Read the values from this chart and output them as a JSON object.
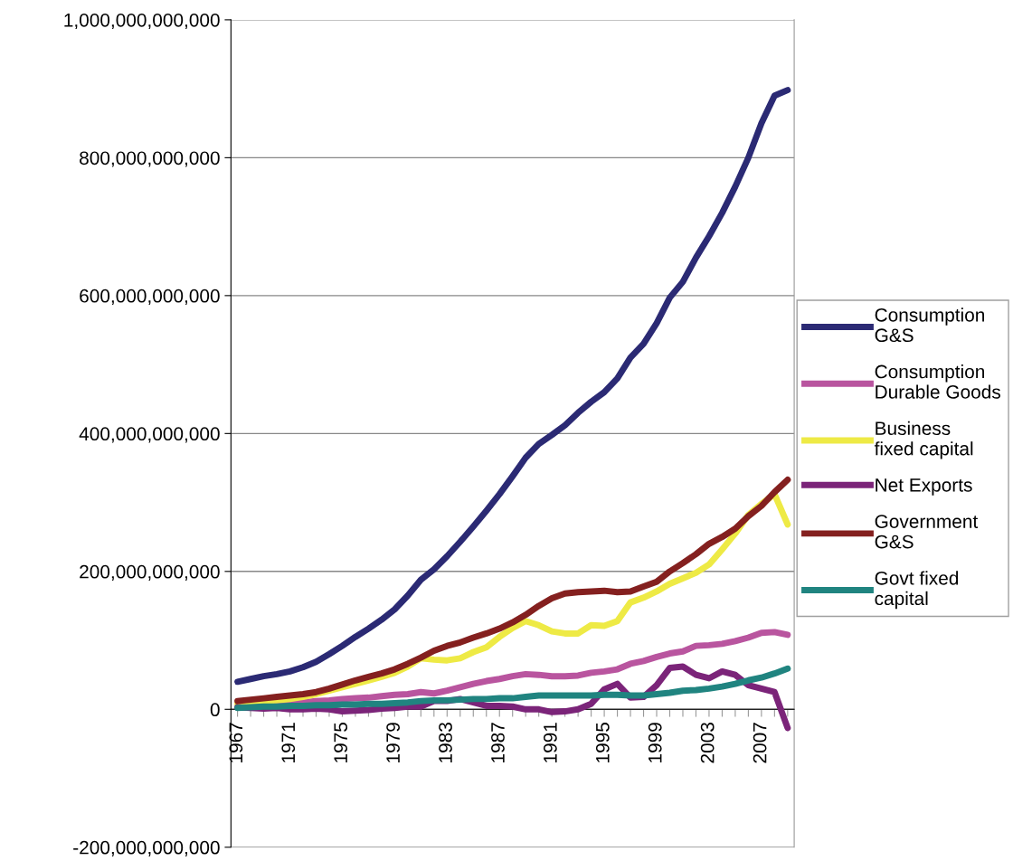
{
  "chart_data": {
    "type": "line",
    "categories": [
      "1967",
      null,
      null,
      null,
      "1971",
      null,
      null,
      null,
      "1975",
      null,
      null,
      null,
      "1979",
      null,
      null,
      null,
      "1983",
      null,
      null,
      null,
      "1987",
      null,
      null,
      null,
      "1991",
      null,
      null,
      null,
      "1995",
      null,
      null,
      null,
      "1999",
      null,
      null,
      null,
      "2003",
      null,
      null,
      null,
      "2007",
      null,
      null
    ],
    "series": [
      {
        "name": "Consumption G&S",
        "color": "#2b2a74",
        "values": [
          40000000000.0,
          44000000000.0,
          48000000000.0,
          51000000000.0,
          55000000000.0,
          61000000000.0,
          69000000000.0,
          80000000000.0,
          92000000000.0,
          105000000000.0,
          117000000000.0,
          130000000000.0,
          145000000000.0,
          165000000000.0,
          188000000000.0,
          203000000000.0,
          222000000000.0,
          243000000000.0,
          265000000000.0,
          288000000000.0,
          312000000000.0,
          338000000000.0,
          365000000000.0,
          385000000000.0,
          398000000000.0,
          412000000000.0,
          430000000000.0,
          446000000000.0,
          460000000000.0,
          480000000000.0,
          510000000000.0,
          530000000000.0,
          560000000000.0,
          597000000000.0,
          620000000000.0,
          655000000000.0,
          686000000000.0,
          720000000000.0,
          758000000000.0,
          800000000000.0,
          850000000000.0,
          890000000000.0,
          898000000000.0
        ]
      },
      {
        "name": "Consumption Durable Goods",
        "color": "#b9559f",
        "values": [
          null,
          null,
          null,
          8000000000.0,
          9000000000.0,
          10000000000.0,
          12000000000.0,
          13000000000.0,
          15000000000.0,
          16000000000.0,
          17000000000.0,
          19000000000.0,
          21000000000.0,
          22000000000.0,
          25000000000.0,
          23000000000.0,
          27000000000.0,
          32000000000.0,
          37000000000.0,
          41000000000.0,
          44000000000.0,
          48000000000.0,
          51000000000.0,
          50000000000.0,
          48000000000.0,
          48000000000.0,
          49000000000.0,
          53000000000.0,
          55000000000.0,
          58000000000.0,
          66000000000.0,
          70000000000.0,
          76000000000.0,
          81000000000.0,
          84000000000.0,
          92000000000.0,
          93000000000.0,
          95000000000.0,
          99000000000.0,
          104000000000.0,
          111000000000.0,
          112000000000.0,
          108000000000.0
        ]
      },
      {
        "name": "Business fixed capital",
        "color": "#eeea45",
        "values": [
          8000000000.0,
          10000000000.0,
          12000000000.0,
          13000000000.0,
          15000000000.0,
          18000000000.0,
          22000000000.0,
          27000000000.0,
          32000000000.0,
          37000000000.0,
          42000000000.0,
          47000000000.0,
          53000000000.0,
          62000000000.0,
          74000000000.0,
          72000000000.0,
          71000000000.0,
          74000000000.0,
          83000000000.0,
          90000000000.0,
          105000000000.0,
          118000000000.0,
          128000000000.0,
          122000000000.0,
          113000000000.0,
          110000000000.0,
          110000000000.0,
          122000000000.0,
          121000000000.0,
          128000000000.0,
          155000000000.0,
          162000000000.0,
          171000000000.0,
          182000000000.0,
          190000000000.0,
          198000000000.0,
          210000000000.0,
          232000000000.0,
          255000000000.0,
          282000000000.0,
          298000000000.0,
          312000000000.0,
          268000000000.0
        ]
      },
      {
        "name": "Net Exports",
        "color": "#7b2479",
        "values": [
          3000000000.0,
          2000000000.0,
          1000000000.0,
          2000000000.0,
          0,
          0,
          1000000000.0,
          0,
          -3000000000.0,
          -2000000000.0,
          -1000000000.0,
          1000000000.0,
          2000000000.0,
          4000000000.0,
          4000000000.0,
          12000000000.0,
          12000000000.0,
          15000000000.0,
          10000000000.0,
          5000000000.0,
          5000000000.0,
          4000000000.0,
          0,
          0,
          -4000000000.0,
          -3000000000.0,
          0,
          8000000000.0,
          29000000000.0,
          37000000000.0,
          17000000000.0,
          18000000000.0,
          35000000000.0,
          60000000000.0,
          62000000000.0,
          50000000000.0,
          45000000000.0,
          55000000000.0,
          50000000000.0,
          35000000000.0,
          30000000000.0,
          25000000000.0,
          -27000000000.0
        ]
      },
      {
        "name": "Government G&S",
        "color": "#84201f",
        "values": [
          12000000000.0,
          14000000000.0,
          16000000000.0,
          18000000000.0,
          20000000000.0,
          22000000000.0,
          25000000000.0,
          30000000000.0,
          36000000000.0,
          42000000000.0,
          47000000000.0,
          52000000000.0,
          58000000000.0,
          66000000000.0,
          75000000000.0,
          85000000000.0,
          92000000000.0,
          97000000000.0,
          104000000000.0,
          110000000000.0,
          117000000000.0,
          126000000000.0,
          137000000000.0,
          150000000000.0,
          161000000000.0,
          168000000000.0,
          170000000000.0,
          171000000000.0,
          172000000000.0,
          170000000000.0,
          171000000000.0,
          178000000000.0,
          185000000000.0,
          200000000000.0,
          212000000000.0,
          225000000000.0,
          240000000000.0,
          250000000000.0,
          262000000000.0,
          280000000000.0,
          295000000000.0,
          315000000000.0,
          333000000000.0
        ]
      },
      {
        "name": "Govt fixed capital",
        "color": "#208480",
        "values": [
          2000000000.0,
          3000000000.0,
          4000000000.0,
          4000000000.0,
          5000000000.0,
          5000000000.0,
          6000000000.0,
          6000000000.0,
          7000000000.0,
          7000000000.0,
          8000000000.0,
          8000000000.0,
          9000000000.0,
          10000000000.0,
          12000000000.0,
          13000000000.0,
          13000000000.0,
          14000000000.0,
          15000000000.0,
          15000000000.0,
          16000000000.0,
          16000000000.0,
          18000000000.0,
          20000000000.0,
          20000000000.0,
          20000000000.0,
          20000000000.0,
          20000000000.0,
          21000000000.0,
          21000000000.0,
          20000000000.0,
          20000000000.0,
          22000000000.0,
          24000000000.0,
          27000000000.0,
          28000000000.0,
          30000000000.0,
          33000000000.0,
          37000000000.0,
          42000000000.0,
          46000000000.0,
          52000000000.0,
          59000000000.0
        ]
      }
    ],
    "ylim": [
      -200000000000.0,
      1000000000000.0
    ],
    "yticks": [
      {
        "value": -200000000000.0,
        "label": "-200,000,000,000"
      },
      {
        "value": 0,
        "label": "0"
      },
      {
        "value": 200000000000.0,
        "label": "200,000,000,000"
      },
      {
        "value": 400000000000.0,
        "label": "400,000,000,000"
      },
      {
        "value": 600000000000.0,
        "label": "600,000,000,000"
      },
      {
        "value": 800000000000.0,
        "label": "800,000,000,000"
      },
      {
        "value": 1000000000000.0,
        "label": "1,000,000,000,000"
      }
    ],
    "grid": "y",
    "legend": "right",
    "marker": "none",
    "line_style": "solid"
  }
}
